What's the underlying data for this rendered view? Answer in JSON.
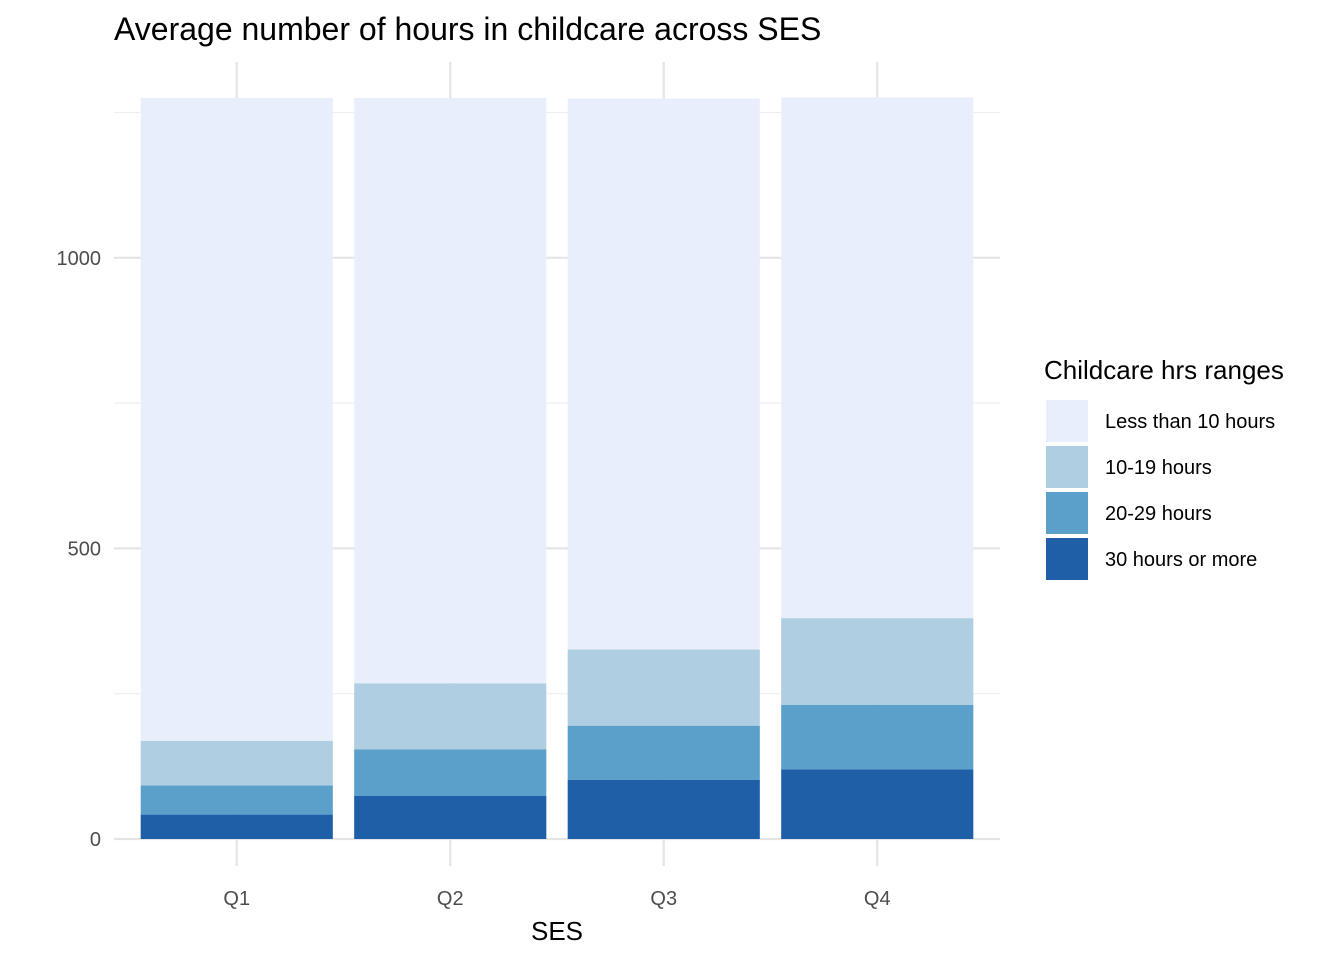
{
  "chart_data": {
    "type": "bar",
    "stacked": true,
    "title": "Average number of hours in childcare across SES",
    "xlabel": "SES",
    "ylabel": "",
    "categories": [
      "Q1",
      "Q2",
      "Q3",
      "Q4"
    ],
    "ylim": [
      0,
      1300
    ],
    "yticks": [
      0,
      500,
      1000
    ],
    "grid": true,
    "legend": {
      "title": "Childcare hrs ranges",
      "position": "right"
    },
    "series": [
      {
        "name": "30 hours or more",
        "color": "#1f5fa8",
        "values": [
          42,
          74,
          102,
          120
        ]
      },
      {
        "name": "20-29 hours",
        "color": "#5b9fcb",
        "values": [
          50,
          80,
          93,
          111
        ]
      },
      {
        "name": "10-19 hours",
        "color": "#b0cee1",
        "values": [
          77,
          114,
          131,
          149
        ]
      },
      {
        "name": "Less than 10 hours",
        "color": "#e8eefc",
        "values": [
          1106,
          1007,
          948,
          896
        ]
      }
    ],
    "legend_order": [
      "Less than 10 hours",
      "10-19 hours",
      "20-29 hours",
      "30 hours or more"
    ]
  }
}
